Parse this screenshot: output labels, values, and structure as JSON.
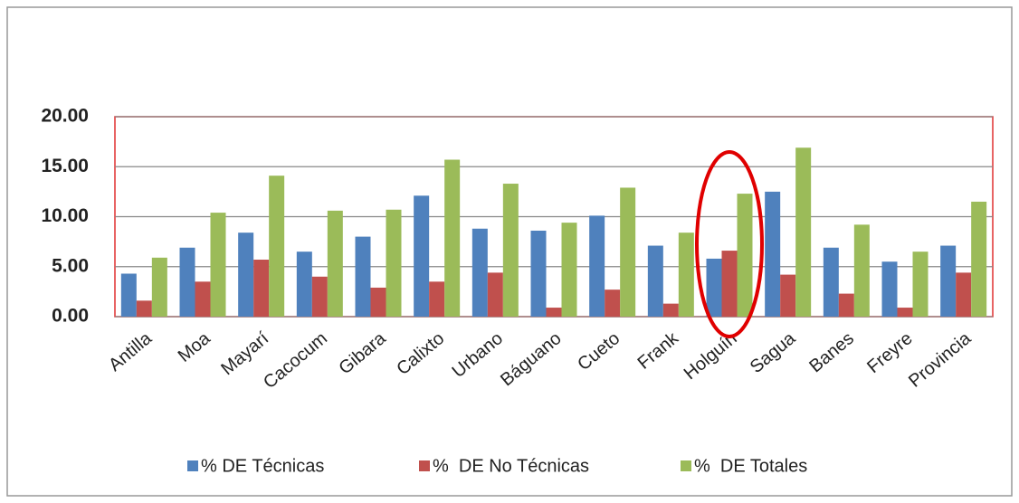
{
  "chart_data": {
    "type": "bar",
    "categories": [
      "Antilla",
      "Moa",
      "Mayarí",
      "Cacocum",
      "Gibara",
      "Calixto",
      "Urbano",
      "Báguano",
      "Cueto",
      "Frank",
      "Holguín",
      "Sagua",
      "Banes",
      "Freyre",
      "Provincia"
    ],
    "series": [
      {
        "name": "% DE Técnicas",
        "color": "#4f81bd",
        "values": [
          4.3,
          6.9,
          8.4,
          6.5,
          8.0,
          12.1,
          8.8,
          8.6,
          10.1,
          7.1,
          5.8,
          12.5,
          6.9,
          5.5,
          7.1
        ]
      },
      {
        "name": "%  DE No Técnicas",
        "color": "#c0504d",
        "values": [
          1.6,
          3.5,
          5.7,
          4.0,
          2.9,
          3.5,
          4.4,
          0.9,
          2.7,
          1.3,
          6.6,
          4.2,
          2.3,
          0.9,
          4.4
        ]
      },
      {
        "name": "%  DE Totales",
        "color": "#9bbb59",
        "values": [
          5.9,
          10.4,
          14.1,
          10.6,
          10.7,
          15.7,
          13.3,
          9.4,
          12.9,
          8.4,
          12.3,
          16.9,
          9.2,
          6.5,
          11.5
        ]
      }
    ],
    "ylim": [
      0,
      20
    ],
    "yticks": [
      {
        "value": 0,
        "label": "0.00"
      },
      {
        "value": 5,
        "label": "5.00"
      },
      {
        "value": 10,
        "label": "10.00"
      },
      {
        "value": 15,
        "label": "15.00"
      },
      {
        "value": 20,
        "label": "20.00"
      }
    ],
    "grid": true,
    "legend": "bottom"
  }
}
